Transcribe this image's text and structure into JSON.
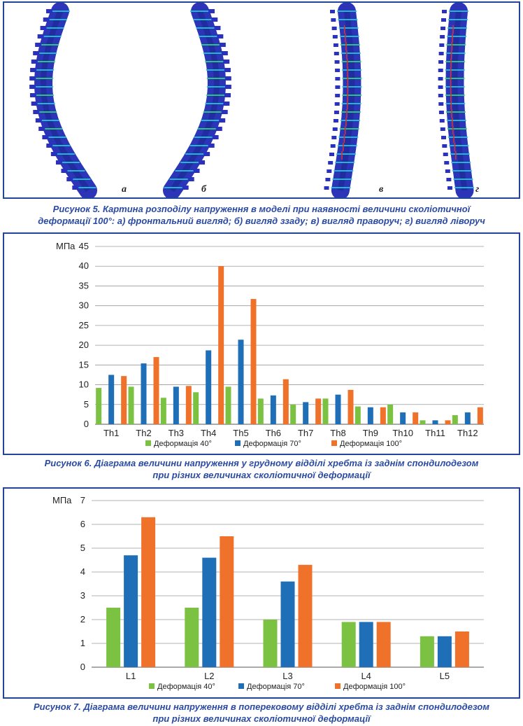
{
  "figure5": {
    "labels": [
      "а",
      "б",
      "в",
      "г"
    ],
    "caption_line1": "Рисунок 5. Картина розподілу напруження в моделі при наявності величини сколіотичної",
    "caption_line2": "деформації 100°: а) фронтальний вигляд; б) вигляд ззаду; в) вигляд праворуч; г) вигляд ліворуч",
    "colors": {
      "body": "#2c35b8",
      "stress_low": "#22c4d4",
      "stress_mid": "#2bd37a",
      "stress_high": "#d8322e"
    }
  },
  "figure6": {
    "caption_line1": "Рисунок 6. Діаграма величини напруження у грудному відділі хребта із заднім спондилодезом",
    "caption_line2": "при різних величинах сколіотичної деформації"
  },
  "figure7": {
    "caption_line1": "Рисунок 7. Діаграма величини напруження в поперековому відділі хребта із заднім спондилодезом",
    "caption_line2": "при різних величинах сколіотичної деформації"
  },
  "chart_data": [
    {
      "type": "bar",
      "ylabel": "МПа",
      "ylim": [
        0,
        45
      ],
      "yticks": [
        "0",
        "5",
        "10",
        "15",
        "20",
        "25",
        "30",
        "35",
        "40",
        "45"
      ],
      "grid": true,
      "legend_position": "bottom",
      "categories": [
        "Th1",
        "Th2",
        "Th3",
        "Th4",
        "Th5",
        "Th6",
        "Th7",
        "Th8",
        "Th9",
        "Th10",
        "Th11",
        "Th12"
      ],
      "series": [
        {
          "name": "Деформація 40°",
          "color": "#7cc242",
          "values": [
            9.2,
            9.5,
            6.7,
            8.1,
            9.5,
            6.5,
            5.0,
            6.5,
            4.5,
            5.0,
            1.0,
            2.3
          ]
        },
        {
          "name": "Деформація 70°",
          "color": "#1f6fb8",
          "values": [
            12.5,
            15.4,
            9.5,
            18.7,
            21.4,
            7.3,
            5.6,
            7.5,
            4.3,
            3.0,
            1.0,
            3.0
          ]
        },
        {
          "name": "Деформація 100°",
          "color": "#f0712a",
          "values": [
            12.2,
            17.0,
            9.7,
            40.0,
            31.7,
            11.4,
            6.5,
            8.7,
            4.3,
            3.0,
            1.0,
            4.3
          ]
        }
      ]
    },
    {
      "type": "bar",
      "ylabel": "МПа",
      "ylim": [
        0,
        7
      ],
      "yticks": [
        "0",
        "1",
        "2",
        "3",
        "4",
        "5",
        "6",
        "7"
      ],
      "grid": true,
      "legend_position": "bottom",
      "categories": [
        "L1",
        "L2",
        "L3",
        "L4",
        "L5"
      ],
      "series": [
        {
          "name": "Деформація 40°",
          "color": "#7cc242",
          "values": [
            2.5,
            2.5,
            2.0,
            1.9,
            1.3
          ]
        },
        {
          "name": "Деформація 70°",
          "color": "#1f6fb8",
          "values": [
            4.7,
            4.6,
            3.6,
            1.9,
            1.3
          ]
        },
        {
          "name": "Деформація 100°",
          "color": "#f0712a",
          "values": [
            6.3,
            5.5,
            4.3,
            1.9,
            1.5
          ]
        }
      ]
    }
  ]
}
